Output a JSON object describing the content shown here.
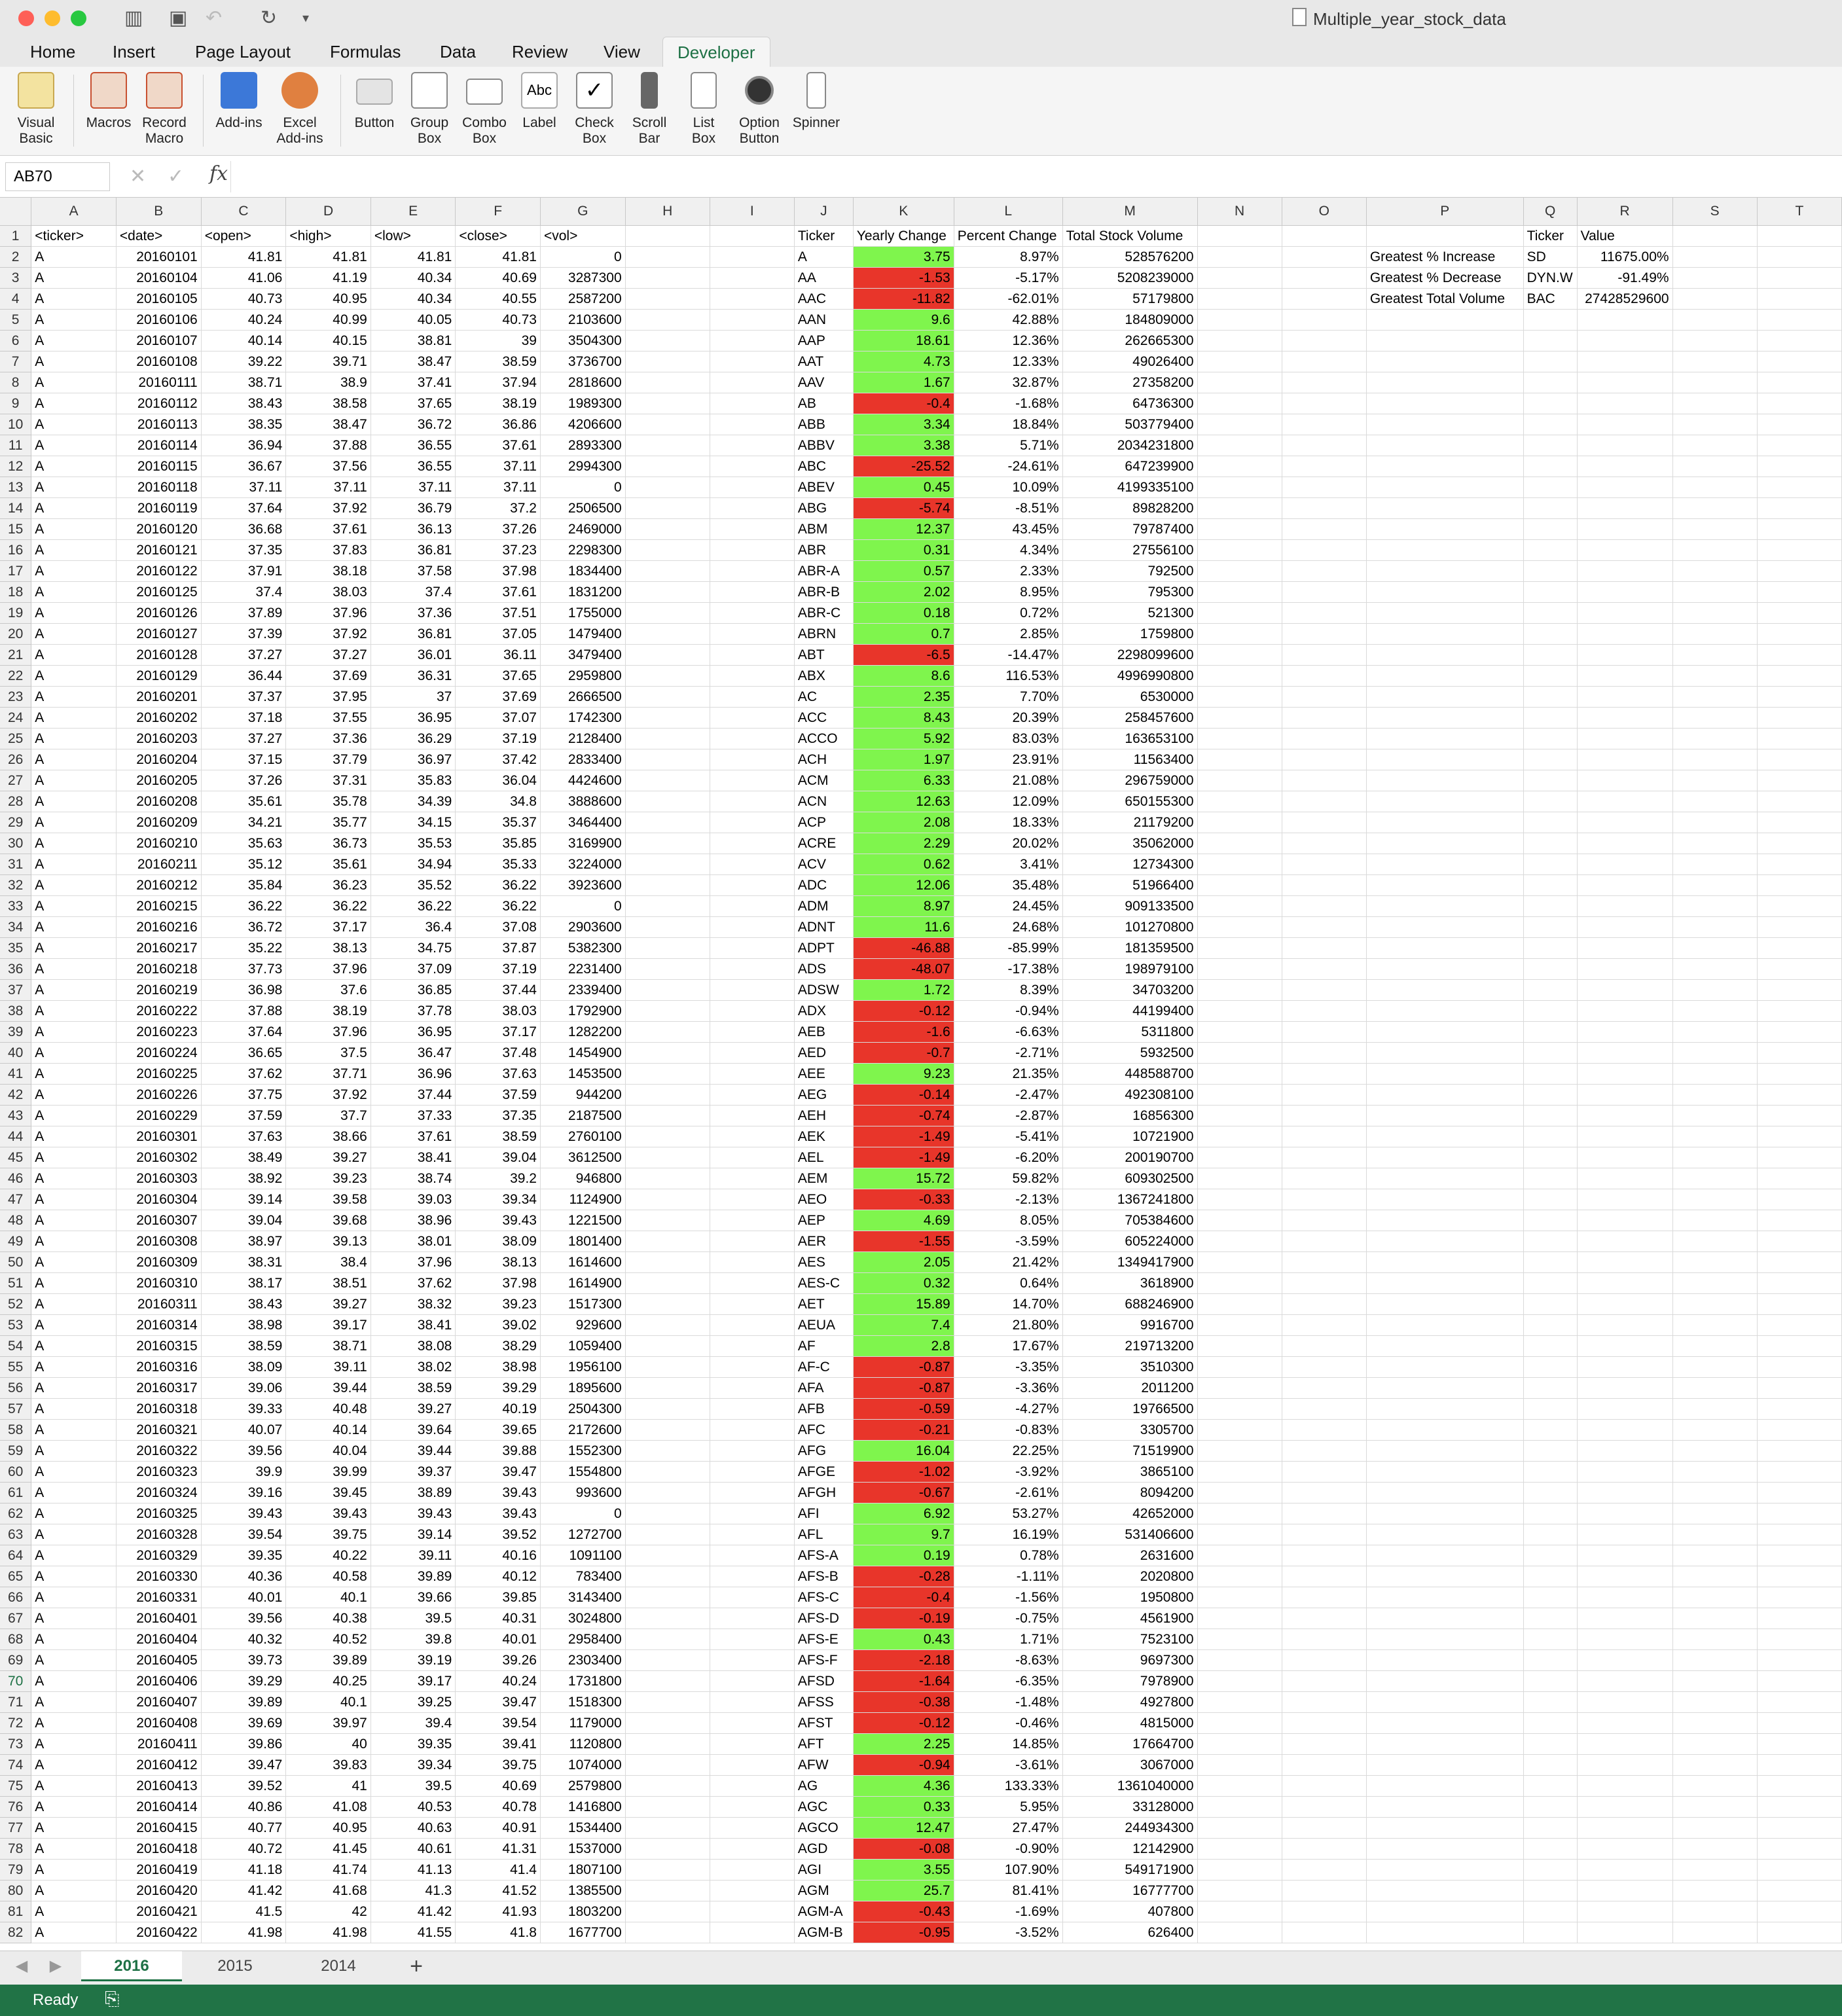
{
  "app": {
    "doc_title": "Multiple_year_stock_data",
    "name_box": "AB70",
    "status": "Ready"
  },
  "tabs": [
    "Home",
    "Insert",
    "Page Layout",
    "Formulas",
    "Data",
    "Review",
    "View",
    "Developer"
  ],
  "ribbon": [
    "Visual\nBasic",
    "Macros",
    "Record\nMacro",
    "Add-ins",
    "Excel\nAdd-ins",
    "Button",
    "Group\nBox",
    "Combo\nBox",
    "Label",
    "Check\nBox",
    "Scroll\nBar",
    "List\nBox",
    "Option\nButton",
    "Spinner"
  ],
  "columns": [
    "A",
    "B",
    "C",
    "D",
    "E",
    "F",
    "G",
    "H",
    "I",
    "J",
    "K",
    "L",
    "M",
    "N",
    "O",
    "P",
    "Q",
    "R",
    "S",
    "T"
  ],
  "header_row": [
    "<ticker>",
    "<date>",
    "<open>",
    "<high>",
    "<low>",
    "<close>",
    "<vol>",
    "",
    "",
    "Ticker",
    "Yearly Change",
    "Percent Change",
    "Total Stock Volume",
    "",
    "",
    "",
    "Ticker",
    "Value",
    "",
    ""
  ],
  "raw": [
    [
      20160101,
      41.81,
      41.81,
      41.81,
      41.81,
      0
    ],
    [
      20160104,
      41.06,
      41.19,
      40.34,
      40.69,
      3287300
    ],
    [
      20160105,
      40.73,
      40.95,
      40.34,
      40.55,
      2587200
    ],
    [
      20160106,
      40.24,
      40.99,
      40.05,
      40.73,
      2103600
    ],
    [
      20160107,
      40.14,
      40.15,
      38.81,
      39,
      3504300
    ],
    [
      20160108,
      39.22,
      39.71,
      38.47,
      38.59,
      3736700
    ],
    [
      20160111,
      38.71,
      38.9,
      37.41,
      37.94,
      2818600
    ],
    [
      20160112,
      38.43,
      38.58,
      37.65,
      38.19,
      1989300
    ],
    [
      20160113,
      38.35,
      38.47,
      36.72,
      36.86,
      4206600
    ],
    [
      20160114,
      36.94,
      37.88,
      36.55,
      37.61,
      2893300
    ],
    [
      20160115,
      36.67,
      37.56,
      36.55,
      37.11,
      2994300
    ],
    [
      20160118,
      37.11,
      37.11,
      37.11,
      37.11,
      0
    ],
    [
      20160119,
      37.64,
      37.92,
      36.79,
      37.2,
      2506500
    ],
    [
      20160120,
      36.68,
      37.61,
      36.13,
      37.26,
      2469000
    ],
    [
      20160121,
      37.35,
      37.83,
      36.81,
      37.23,
      2298300
    ],
    [
      20160122,
      37.91,
      38.18,
      37.58,
      37.98,
      1834400
    ],
    [
      20160125,
      37.4,
      38.03,
      37.4,
      37.61,
      1831200
    ],
    [
      20160126,
      37.89,
      37.96,
      37.36,
      37.51,
      1755000
    ],
    [
      20160127,
      37.39,
      37.92,
      36.81,
      37.05,
      1479400
    ],
    [
      20160128,
      37.27,
      37.27,
      36.01,
      36.11,
      3479400
    ],
    [
      20160129,
      36.44,
      37.69,
      36.31,
      37.65,
      2959800
    ],
    [
      20160201,
      37.37,
      37.95,
      37,
      37.69,
      2666500
    ],
    [
      20160202,
      37.18,
      37.55,
      36.95,
      37.07,
      1742300
    ],
    [
      20160203,
      37.27,
      37.36,
      36.29,
      37.19,
      2128400
    ],
    [
      20160204,
      37.15,
      37.79,
      36.97,
      37.42,
      2833400
    ],
    [
      20160205,
      37.26,
      37.31,
      35.83,
      36.04,
      4424600
    ],
    [
      20160208,
      35.61,
      35.78,
      34.39,
      34.8,
      3888600
    ],
    [
      20160209,
      34.21,
      35.77,
      34.15,
      35.37,
      3464400
    ],
    [
      20160210,
      35.63,
      36.73,
      35.53,
      35.85,
      3169900
    ],
    [
      20160211,
      35.12,
      35.61,
      34.94,
      35.33,
      3224000
    ],
    [
      20160212,
      35.84,
      36.23,
      35.52,
      36.22,
      3923600
    ],
    [
      20160215,
      36.22,
      36.22,
      36.22,
      36.22,
      0
    ],
    [
      20160216,
      36.72,
      37.17,
      36.4,
      37.08,
      2903600
    ],
    [
      20160217,
      35.22,
      38.13,
      34.75,
      37.87,
      5382300
    ],
    [
      20160218,
      37.73,
      37.96,
      37.09,
      37.19,
      2231400
    ],
    [
      20160219,
      36.98,
      37.6,
      36.85,
      37.44,
      2339400
    ],
    [
      20160222,
      37.88,
      38.19,
      37.78,
      38.03,
      1792900
    ],
    [
      20160223,
      37.64,
      37.96,
      36.95,
      37.17,
      1282200
    ],
    [
      20160224,
      36.65,
      37.5,
      36.47,
      37.48,
      1454900
    ],
    [
      20160225,
      37.62,
      37.71,
      36.96,
      37.63,
      1453500
    ],
    [
      20160226,
      37.75,
      37.92,
      37.44,
      37.59,
      944200
    ],
    [
      20160229,
      37.59,
      37.7,
      37.33,
      37.35,
      2187500
    ],
    [
      20160301,
      37.63,
      38.66,
      37.61,
      38.59,
      2760100
    ],
    [
      20160302,
      38.49,
      39.27,
      38.41,
      39.04,
      3612500
    ],
    [
      20160303,
      38.92,
      39.23,
      38.74,
      39.2,
      946800
    ],
    [
      20160304,
      39.14,
      39.58,
      39.03,
      39.34,
      1124900
    ],
    [
      20160307,
      39.04,
      39.68,
      38.96,
      39.43,
      1221500
    ],
    [
      20160308,
      38.97,
      39.13,
      38.01,
      38.09,
      1801400
    ],
    [
      20160309,
      38.31,
      38.4,
      37.96,
      38.13,
      1614600
    ],
    [
      20160310,
      38.17,
      38.51,
      37.62,
      37.98,
      1614900
    ],
    [
      20160311,
      38.43,
      39.27,
      38.32,
      39.23,
      1517300
    ],
    [
      20160314,
      38.98,
      39.17,
      38.41,
      39.02,
      929600
    ],
    [
      20160315,
      38.59,
      38.71,
      38.08,
      38.29,
      1059400
    ],
    [
      20160316,
      38.09,
      39.11,
      38.02,
      38.98,
      1956100
    ],
    [
      20160317,
      39.06,
      39.44,
      38.59,
      39.29,
      1895600
    ],
    [
      20160318,
      39.33,
      40.48,
      39.27,
      40.19,
      2504300
    ],
    [
      20160321,
      40.07,
      40.14,
      39.64,
      39.65,
      2172600
    ],
    [
      20160322,
      39.56,
      40.04,
      39.44,
      39.88,
      1552300
    ],
    [
      20160323,
      39.9,
      39.99,
      39.37,
      39.47,
      1554800
    ],
    [
      20160324,
      39.16,
      39.45,
      38.89,
      39.43,
      993600
    ],
    [
      20160325,
      39.43,
      39.43,
      39.43,
      39.43,
      0
    ],
    [
      20160328,
      39.54,
      39.75,
      39.14,
      39.52,
      1272700
    ],
    [
      20160329,
      39.35,
      40.22,
      39.11,
      40.16,
      1091100
    ],
    [
      20160330,
      40.36,
      40.58,
      39.89,
      40.12,
      783400
    ],
    [
      20160331,
      40.01,
      40.1,
      39.66,
      39.85,
      3143400
    ],
    [
      20160401,
      39.56,
      40.38,
      39.5,
      40.31,
      3024800
    ],
    [
      20160404,
      40.32,
      40.52,
      39.8,
      40.01,
      2958400
    ],
    [
      20160405,
      39.73,
      39.89,
      39.19,
      39.26,
      2303400
    ],
    [
      20160406,
      39.29,
      40.25,
      39.17,
      40.24,
      1731800
    ],
    [
      20160407,
      39.89,
      40.1,
      39.25,
      39.47,
      1518300
    ],
    [
      20160408,
      39.69,
      39.97,
      39.4,
      39.54,
      1179000
    ],
    [
      20160411,
      39.86,
      40,
      39.35,
      39.41,
      1120800
    ],
    [
      20160412,
      39.47,
      39.83,
      39.34,
      39.75,
      1074000
    ],
    [
      20160413,
      39.52,
      41,
      39.5,
      40.69,
      2579800
    ],
    [
      20160414,
      40.86,
      41.08,
      40.53,
      40.78,
      1416800
    ],
    [
      20160415,
      40.77,
      40.95,
      40.63,
      40.91,
      1534400
    ],
    [
      20160418,
      40.72,
      41.45,
      40.61,
      41.31,
      1537000
    ],
    [
      20160419,
      41.18,
      41.74,
      41.13,
      41.4,
      1807100
    ],
    [
      20160420,
      41.42,
      41.68,
      41.3,
      41.52,
      1385500
    ],
    [
      20160421,
      41.5,
      42,
      41.42,
      41.93,
      1803200
    ],
    [
      20160422,
      41.98,
      41.98,
      41.55,
      41.8,
      1677700
    ]
  ],
  "summary": [
    [
      "A",
      "3.75",
      "8.97%",
      "528576200"
    ],
    [
      "AA",
      "-1.53",
      "-5.17%",
      "5208239000"
    ],
    [
      "AAC",
      "-11.82",
      "-62.01%",
      "57179800"
    ],
    [
      "AAN",
      "9.6",
      "42.88%",
      "184809000"
    ],
    [
      "AAP",
      "18.61",
      "12.36%",
      "262665300"
    ],
    [
      "AAT",
      "4.73",
      "12.33%",
      "49026400"
    ],
    [
      "AAV",
      "1.67",
      "32.87%",
      "27358200"
    ],
    [
      "AB",
      "-0.4",
      "-1.68%",
      "64736300"
    ],
    [
      "ABB",
      "3.34",
      "18.84%",
      "503779400"
    ],
    [
      "ABBV",
      "3.38",
      "5.71%",
      "2034231800"
    ],
    [
      "ABC",
      "-25.52",
      "-24.61%",
      "647239900"
    ],
    [
      "ABEV",
      "0.45",
      "10.09%",
      "4199335100"
    ],
    [
      "ABG",
      "-5.74",
      "-8.51%",
      "89828200"
    ],
    [
      "ABM",
      "12.37",
      "43.45%",
      "79787400"
    ],
    [
      "ABR",
      "0.31",
      "4.34%",
      "27556100"
    ],
    [
      "ABR-A",
      "0.57",
      "2.33%",
      "792500"
    ],
    [
      "ABR-B",
      "2.02",
      "8.95%",
      "795300"
    ],
    [
      "ABR-C",
      "0.18",
      "0.72%",
      "521300"
    ],
    [
      "ABRN",
      "0.7",
      "2.85%",
      "1759800"
    ],
    [
      "ABT",
      "-6.5",
      "-14.47%",
      "2298099600"
    ],
    [
      "ABX",
      "8.6",
      "116.53%",
      "4996990800"
    ],
    [
      "AC",
      "2.35",
      "7.70%",
      "6530000"
    ],
    [
      "ACC",
      "8.43",
      "20.39%",
      "258457600"
    ],
    [
      "ACCO",
      "5.92",
      "83.03%",
      "163653100"
    ],
    [
      "ACH",
      "1.97",
      "23.91%",
      "11563400"
    ],
    [
      "ACM",
      "6.33",
      "21.08%",
      "296759000"
    ],
    [
      "ACN",
      "12.63",
      "12.09%",
      "650155300"
    ],
    [
      "ACP",
      "2.08",
      "18.33%",
      "21179200"
    ],
    [
      "ACRE",
      "2.29",
      "20.02%",
      "35062000"
    ],
    [
      "ACV",
      "0.62",
      "3.41%",
      "12734300"
    ],
    [
      "ADC",
      "12.06",
      "35.48%",
      "51966400"
    ],
    [
      "ADM",
      "8.97",
      "24.45%",
      "909133500"
    ],
    [
      "ADNT",
      "11.6",
      "24.68%",
      "101270800"
    ],
    [
      "ADPT",
      "-46.88",
      "-85.99%",
      "181359500"
    ],
    [
      "ADS",
      "-48.07",
      "-17.38%",
      "198979100"
    ],
    [
      "ADSW",
      "1.72",
      "8.39%",
      "34703200"
    ],
    [
      "ADX",
      "-0.12",
      "-0.94%",
      "44199400"
    ],
    [
      "AEB",
      "-1.6",
      "-6.63%",
      "5311800"
    ],
    [
      "AED",
      "-0.7",
      "-2.71%",
      "5932500"
    ],
    [
      "AEE",
      "9.23",
      "21.35%",
      "448588700"
    ],
    [
      "AEG",
      "-0.14",
      "-2.47%",
      "492308100"
    ],
    [
      "AEH",
      "-0.74",
      "-2.87%",
      "16856300"
    ],
    [
      "AEK",
      "-1.49",
      "-5.41%",
      "10721900"
    ],
    [
      "AEL",
      "-1.49",
      "-6.20%",
      "200190700"
    ],
    [
      "AEM",
      "15.72",
      "59.82%",
      "609302500"
    ],
    [
      "AEO",
      "-0.33",
      "-2.13%",
      "1367241800"
    ],
    [
      "AEP",
      "4.69",
      "8.05%",
      "705384600"
    ],
    [
      "AER",
      "-1.55",
      "-3.59%",
      "605224000"
    ],
    [
      "AES",
      "2.05",
      "21.42%",
      "1349417900"
    ],
    [
      "AES-C",
      "0.32",
      "0.64%",
      "3618900"
    ],
    [
      "AET",
      "15.89",
      "14.70%",
      "688246900"
    ],
    [
      "AEUA",
      "7.4",
      "21.80%",
      "9916700"
    ],
    [
      "AF",
      "2.8",
      "17.67%",
      "219713200"
    ],
    [
      "AF-C",
      "-0.87",
      "-3.35%",
      "3510300"
    ],
    [
      "AFA",
      "-0.87",
      "-3.36%",
      "2011200"
    ],
    [
      "AFB",
      "-0.59",
      "-4.27%",
      "19766500"
    ],
    [
      "AFC",
      "-0.21",
      "-0.83%",
      "3305700"
    ],
    [
      "AFG",
      "16.04",
      "22.25%",
      "71519900"
    ],
    [
      "AFGE",
      "-1.02",
      "-3.92%",
      "3865100"
    ],
    [
      "AFGH",
      "-0.67",
      "-2.61%",
      "8094200"
    ],
    [
      "AFI",
      "6.92",
      "53.27%",
      "42652000"
    ],
    [
      "AFL",
      "9.7",
      "16.19%",
      "531406600"
    ],
    [
      "AFS-A",
      "0.19",
      "0.78%",
      "2631600"
    ],
    [
      "AFS-B",
      "-0.28",
      "-1.11%",
      "2020800"
    ],
    [
      "AFS-C",
      "-0.4",
      "-1.56%",
      "1950800"
    ],
    [
      "AFS-D",
      "-0.19",
      "-0.75%",
      "4561900"
    ],
    [
      "AFS-E",
      "0.43",
      "1.71%",
      "7523100"
    ],
    [
      "AFS-F",
      "-2.18",
      "-8.63%",
      "9697300"
    ],
    [
      "AFSD",
      "-1.64",
      "-6.35%",
      "7978900"
    ],
    [
      "AFSS",
      "-0.38",
      "-1.48%",
      "4927800"
    ],
    [
      "AFST",
      "-0.12",
      "-0.46%",
      "4815000"
    ],
    [
      "AFT",
      "2.25",
      "14.85%",
      "17664700"
    ],
    [
      "AFW",
      "-0.94",
      "-3.61%",
      "3067000"
    ],
    [
      "AG",
      "4.36",
      "133.33%",
      "1361040000"
    ],
    [
      "AGC",
      "0.33",
      "5.95%",
      "33128000"
    ],
    [
      "AGCO",
      "12.47",
      "27.47%",
      "244934300"
    ],
    [
      "AGD",
      "-0.08",
      "-0.90%",
      "12142900"
    ],
    [
      "AGI",
      "3.55",
      "107.90%",
      "549171900"
    ],
    [
      "AGM",
      "25.7",
      "81.41%",
      "16777700"
    ],
    [
      "AGM-A",
      "-0.43",
      "-1.69%",
      "407800"
    ],
    [
      "AGM-B",
      "-0.95",
      "-3.52%",
      "626400"
    ]
  ],
  "greatest": [
    [
      "Greatest % Increase",
      "SD",
      "11675.00%"
    ],
    [
      "Greatest % Decrease",
      "DYN.W",
      "-91.49%"
    ],
    [
      "Greatest Total Volume",
      "BAC",
      "27428529600"
    ]
  ],
  "sheet_tabs": [
    "2016",
    "2015",
    "2014"
  ],
  "colors": {
    "positive": "#7ff54d",
    "negative": "#e8352a",
    "status": "#217346"
  }
}
